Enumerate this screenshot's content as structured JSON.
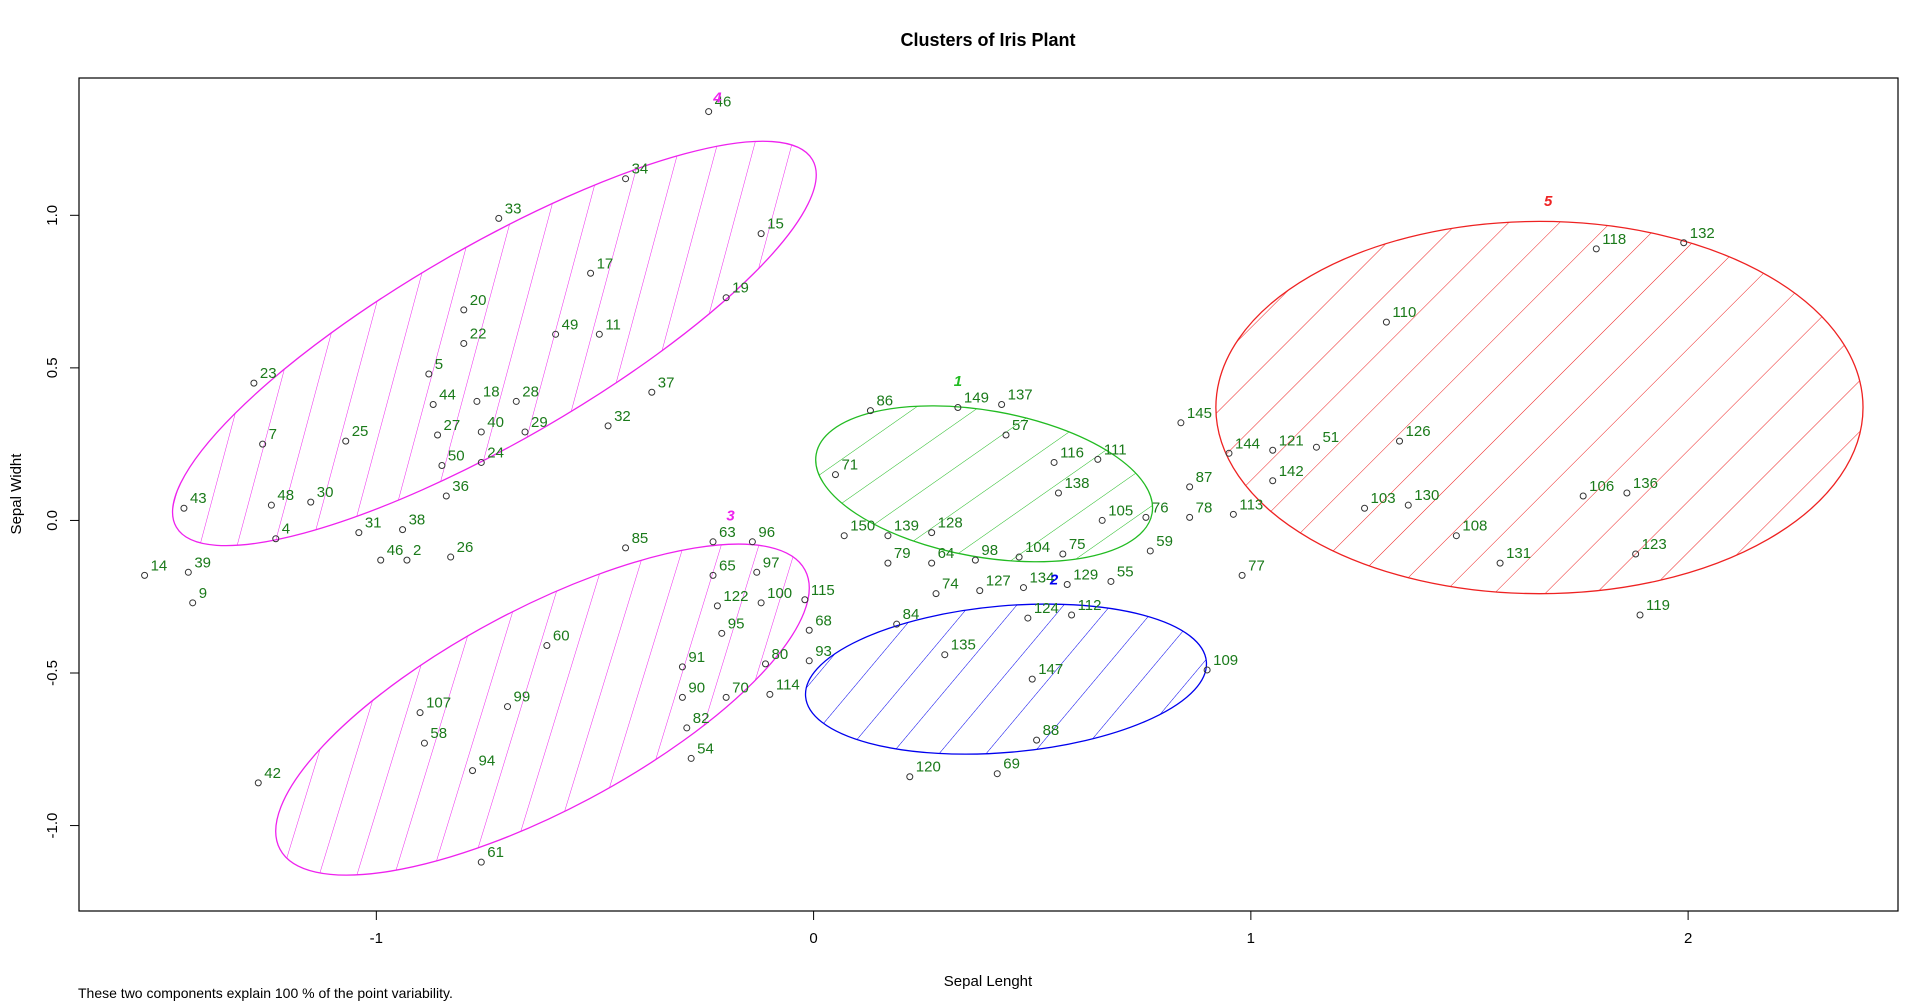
{
  "chart_data": {
    "type": "scatter",
    "title": "Clusters of Iris Plant",
    "xlabel": "Sepal Lenght",
    "ylabel": "Sepal Widht",
    "xlim": [
      -1.68,
      2.48
    ],
    "ylim": [
      -1.28,
      1.45
    ],
    "xticks": [
      "-1",
      "0",
      "1",
      "2"
    ],
    "yticks": [
      "-1.0",
      "-0.5",
      "0.0",
      "0.5",
      "1.0"
    ],
    "xtick_values": [
      -1,
      0,
      1,
      2
    ],
    "ytick_values": [
      -1.0,
      -0.5,
      0.0,
      0.5,
      1.0
    ],
    "grid": false,
    "caption": "These two components explain 100 % of the point variability.",
    "clusters": [
      {
        "label": "1",
        "color": "#22bb22",
        "label_x": 0.33,
        "label_y": 0.44,
        "cx": 0.39,
        "cy": 0.12,
        "rx": 0.39,
        "ry": 0.24,
        "angle": -10
      },
      {
        "label": "2",
        "color": "#0000ee",
        "label_x": 0.55,
        "label_y": -0.21,
        "cx": 0.44,
        "cy": -0.52,
        "rx": 0.46,
        "ry": 0.24,
        "angle": 5
      },
      {
        "label": "3",
        "color": "#ee22ee",
        "label_x": -0.19,
        "label_y": 0.0,
        "cx": -0.62,
        "cy": -0.62,
        "rx": 0.68,
        "ry": 0.33,
        "angle": 28
      },
      {
        "label": "4",
        "color": "#ee22ee",
        "label_x": -0.22,
        "label_y": 1.37,
        "cx": -0.73,
        "cy": 0.58,
        "rx": 0.84,
        "ry": 0.32,
        "angle": 30
      },
      {
        "label": "5",
        "color": "#ee2222",
        "label_x": 1.68,
        "label_y": 1.03,
        "cx": 1.66,
        "cy": 0.37,
        "rx": 0.74,
        "ry": 0.61,
        "angle": 0
      }
    ],
    "points": [
      {
        "label": "46",
        "x": -0.24,
        "y": 1.34
      },
      {
        "label": "34",
        "x": -0.43,
        "y": 1.12
      },
      {
        "label": "33",
        "x": -0.72,
        "y": 0.99
      },
      {
        "label": "15",
        "x": -0.12,
        "y": 0.94
      },
      {
        "label": "17",
        "x": -0.51,
        "y": 0.81
      },
      {
        "label": "19",
        "x": -0.2,
        "y": 0.73
      },
      {
        "label": "20",
        "x": -0.8,
        "y": 0.69
      },
      {
        "label": "49",
        "x": -0.59,
        "y": 0.61
      },
      {
        "label": "11",
        "x": -0.49,
        "y": 0.61
      },
      {
        "label": "22",
        "x": -0.8,
        "y": 0.58
      },
      {
        "label": "23",
        "x": -1.28,
        "y": 0.45
      },
      {
        "label": "5",
        "x": -0.88,
        "y": 0.48
      },
      {
        "label": "37",
        "x": -0.37,
        "y": 0.42
      },
      {
        "label": "44",
        "x": -0.87,
        "y": 0.38
      },
      {
        "label": "18",
        "x": -0.77,
        "y": 0.39
      },
      {
        "label": "28",
        "x": -0.68,
        "y": 0.39
      },
      {
        "label": "32",
        "x": -0.47,
        "y": 0.31
      },
      {
        "label": "27",
        "x": -0.86,
        "y": 0.28
      },
      {
        "label": "40",
        "x": -0.76,
        "y": 0.29
      },
      {
        "label": "29",
        "x": -0.66,
        "y": 0.29
      },
      {
        "label": "7",
        "x": -1.26,
        "y": 0.25
      },
      {
        "label": "25",
        "x": -1.07,
        "y": 0.26
      },
      {
        "label": "50",
        "x": -0.85,
        "y": 0.18
      },
      {
        "label": "24",
        "x": -0.76,
        "y": 0.19
      },
      {
        "label": "36",
        "x": -0.84,
        "y": 0.08
      },
      {
        "label": "43",
        "x": -1.44,
        "y": 0.04
      },
      {
        "label": "48",
        "x": -1.24,
        "y": 0.05
      },
      {
        "label": "30",
        "x": -1.15,
        "y": 0.06
      },
      {
        "label": "31",
        "x": -1.04,
        "y": -0.04
      },
      {
        "label": "38",
        "x": -0.94,
        "y": -0.03
      },
      {
        "label": "4",
        "x": -1.23,
        "y": -0.06
      },
      {
        "label": "46",
        "x": -0.99,
        "y": -0.13
      },
      {
        "label": "2",
        "x": -0.93,
        "y": -0.13
      },
      {
        "label": "26",
        "x": -0.83,
        "y": -0.12
      },
      {
        "label": "14",
        "x": -1.53,
        "y": -0.18
      },
      {
        "label": "39",
        "x": -1.43,
        "y": -0.17
      },
      {
        "label": "9",
        "x": -1.42,
        "y": -0.27
      },
      {
        "label": "85",
        "x": -0.43,
        "y": -0.09
      },
      {
        "label": "63",
        "x": -0.23,
        "y": -0.07
      },
      {
        "label": "96",
        "x": -0.14,
        "y": -0.07
      },
      {
        "label": "97",
        "x": -0.13,
        "y": -0.17
      },
      {
        "label": "65",
        "x": -0.23,
        "y": -0.18
      },
      {
        "label": "122",
        "x": -0.22,
        "y": -0.28
      },
      {
        "label": "100",
        "x": -0.12,
        "y": -0.27
      },
      {
        "label": "115",
        "x": -0.02,
        "y": -0.26
      },
      {
        "label": "95",
        "x": -0.21,
        "y": -0.37
      },
      {
        "label": "68",
        "x": -0.01,
        "y": -0.36
      },
      {
        "label": "60",
        "x": -0.61,
        "y": -0.41
      },
      {
        "label": "91",
        "x": -0.3,
        "y": -0.48
      },
      {
        "label": "80",
        "x": -0.11,
        "y": -0.47
      },
      {
        "label": "93",
        "x": -0.01,
        "y": -0.46
      },
      {
        "label": "90",
        "x": -0.3,
        "y": -0.58
      },
      {
        "label": "70",
        "x": -0.2,
        "y": -0.58
      },
      {
        "label": "114",
        "x": -0.1,
        "y": -0.57
      },
      {
        "label": "107",
        "x": -0.9,
        "y": -0.63
      },
      {
        "label": "99",
        "x": -0.7,
        "y": -0.61
      },
      {
        "label": "82",
        "x": -0.29,
        "y": -0.68
      },
      {
        "label": "58",
        "x": -0.89,
        "y": -0.73
      },
      {
        "label": "54",
        "x": -0.28,
        "y": -0.78
      },
      {
        "label": "94",
        "x": -0.78,
        "y": -0.82
      },
      {
        "label": "42",
        "x": -1.27,
        "y": -0.86
      },
      {
        "label": "61",
        "x": -0.76,
        "y": -1.12
      },
      {
        "label": "86",
        "x": 0.13,
        "y": 0.36
      },
      {
        "label": "149",
        "x": 0.33,
        "y": 0.37
      },
      {
        "label": "137",
        "x": 0.43,
        "y": 0.38
      },
      {
        "label": "57",
        "x": 0.44,
        "y": 0.28
      },
      {
        "label": "71",
        "x": 0.05,
        "y": 0.15
      },
      {
        "label": "116",
        "x": 0.55,
        "y": 0.19
      },
      {
        "label": "111",
        "x": 0.65,
        "y": 0.2
      },
      {
        "label": "138",
        "x": 0.56,
        "y": 0.09
      },
      {
        "label": "150",
        "x": 0.07,
        "y": -0.05
      },
      {
        "label": "139",
        "x": 0.17,
        "y": -0.05
      },
      {
        "label": "128",
        "x": 0.27,
        "y": -0.04
      },
      {
        "label": "105",
        "x": 0.66,
        "y": 0.0
      },
      {
        "label": "76",
        "x": 0.76,
        "y": 0.01
      },
      {
        "label": "79",
        "x": 0.17,
        "y": -0.14
      },
      {
        "label": "64",
        "x": 0.27,
        "y": -0.14
      },
      {
        "label": "98",
        "x": 0.37,
        "y": -0.13
      },
      {
        "label": "104",
        "x": 0.47,
        "y": -0.12
      },
      {
        "label": "75",
        "x": 0.57,
        "y": -0.11
      },
      {
        "label": "59",
        "x": 0.77,
        "y": -0.1
      },
      {
        "label": "74",
        "x": 0.28,
        "y": -0.24
      },
      {
        "label": "127",
        "x": 0.38,
        "y": -0.23
      },
      {
        "label": "134",
        "x": 0.48,
        "y": -0.22
      },
      {
        "label": "129",
        "x": 0.58,
        "y": -0.21
      },
      {
        "label": "55",
        "x": 0.68,
        "y": -0.2
      },
      {
        "label": "84",
        "x": 0.19,
        "y": -0.34
      },
      {
        "label": "124",
        "x": 0.49,
        "y": -0.32
      },
      {
        "label": "112",
        "x": 0.59,
        "y": -0.31
      },
      {
        "label": "135",
        "x": 0.3,
        "y": -0.44
      },
      {
        "label": "147",
        "x": 0.5,
        "y": -0.52
      },
      {
        "label": "109",
        "x": 0.9,
        "y": -0.49
      },
      {
        "label": "88",
        "x": 0.51,
        "y": -0.72
      },
      {
        "label": "69",
        "x": 0.42,
        "y": -0.83
      },
      {
        "label": "120",
        "x": 0.22,
        "y": -0.84
      },
      {
        "label": "118",
        "x": 1.79,
        "y": 0.89
      },
      {
        "label": "132",
        "x": 1.99,
        "y": 0.91
      },
      {
        "label": "110",
        "x": 1.31,
        "y": 0.65
      },
      {
        "label": "145",
        "x": 0.84,
        "y": 0.32
      },
      {
        "label": "144",
        "x": 0.95,
        "y": 0.22
      },
      {
        "label": "121",
        "x": 1.05,
        "y": 0.23
      },
      {
        "label": "51",
        "x": 1.15,
        "y": 0.24
      },
      {
        "label": "126",
        "x": 1.34,
        "y": 0.26
      },
      {
        "label": "87",
        "x": 0.86,
        "y": 0.11
      },
      {
        "label": "142",
        "x": 1.05,
        "y": 0.13
      },
      {
        "label": "106",
        "x": 1.76,
        "y": 0.08
      },
      {
        "label": "136",
        "x": 1.86,
        "y": 0.09
      },
      {
        "label": "78",
        "x": 0.86,
        "y": 0.01
      },
      {
        "label": "113",
        "x": 0.96,
        "y": 0.02
      },
      {
        "label": "103",
        "x": 1.26,
        "y": 0.04
      },
      {
        "label": "130",
        "x": 1.36,
        "y": 0.05
      },
      {
        "label": "108",
        "x": 1.47,
        "y": -0.05
      },
      {
        "label": "131",
        "x": 1.57,
        "y": -0.14
      },
      {
        "label": "123",
        "x": 1.88,
        "y": -0.11
      },
      {
        "label": "77",
        "x": 0.98,
        "y": -0.18
      },
      {
        "label": "119",
        "x": 1.89,
        "y": -0.31
      }
    ]
  }
}
